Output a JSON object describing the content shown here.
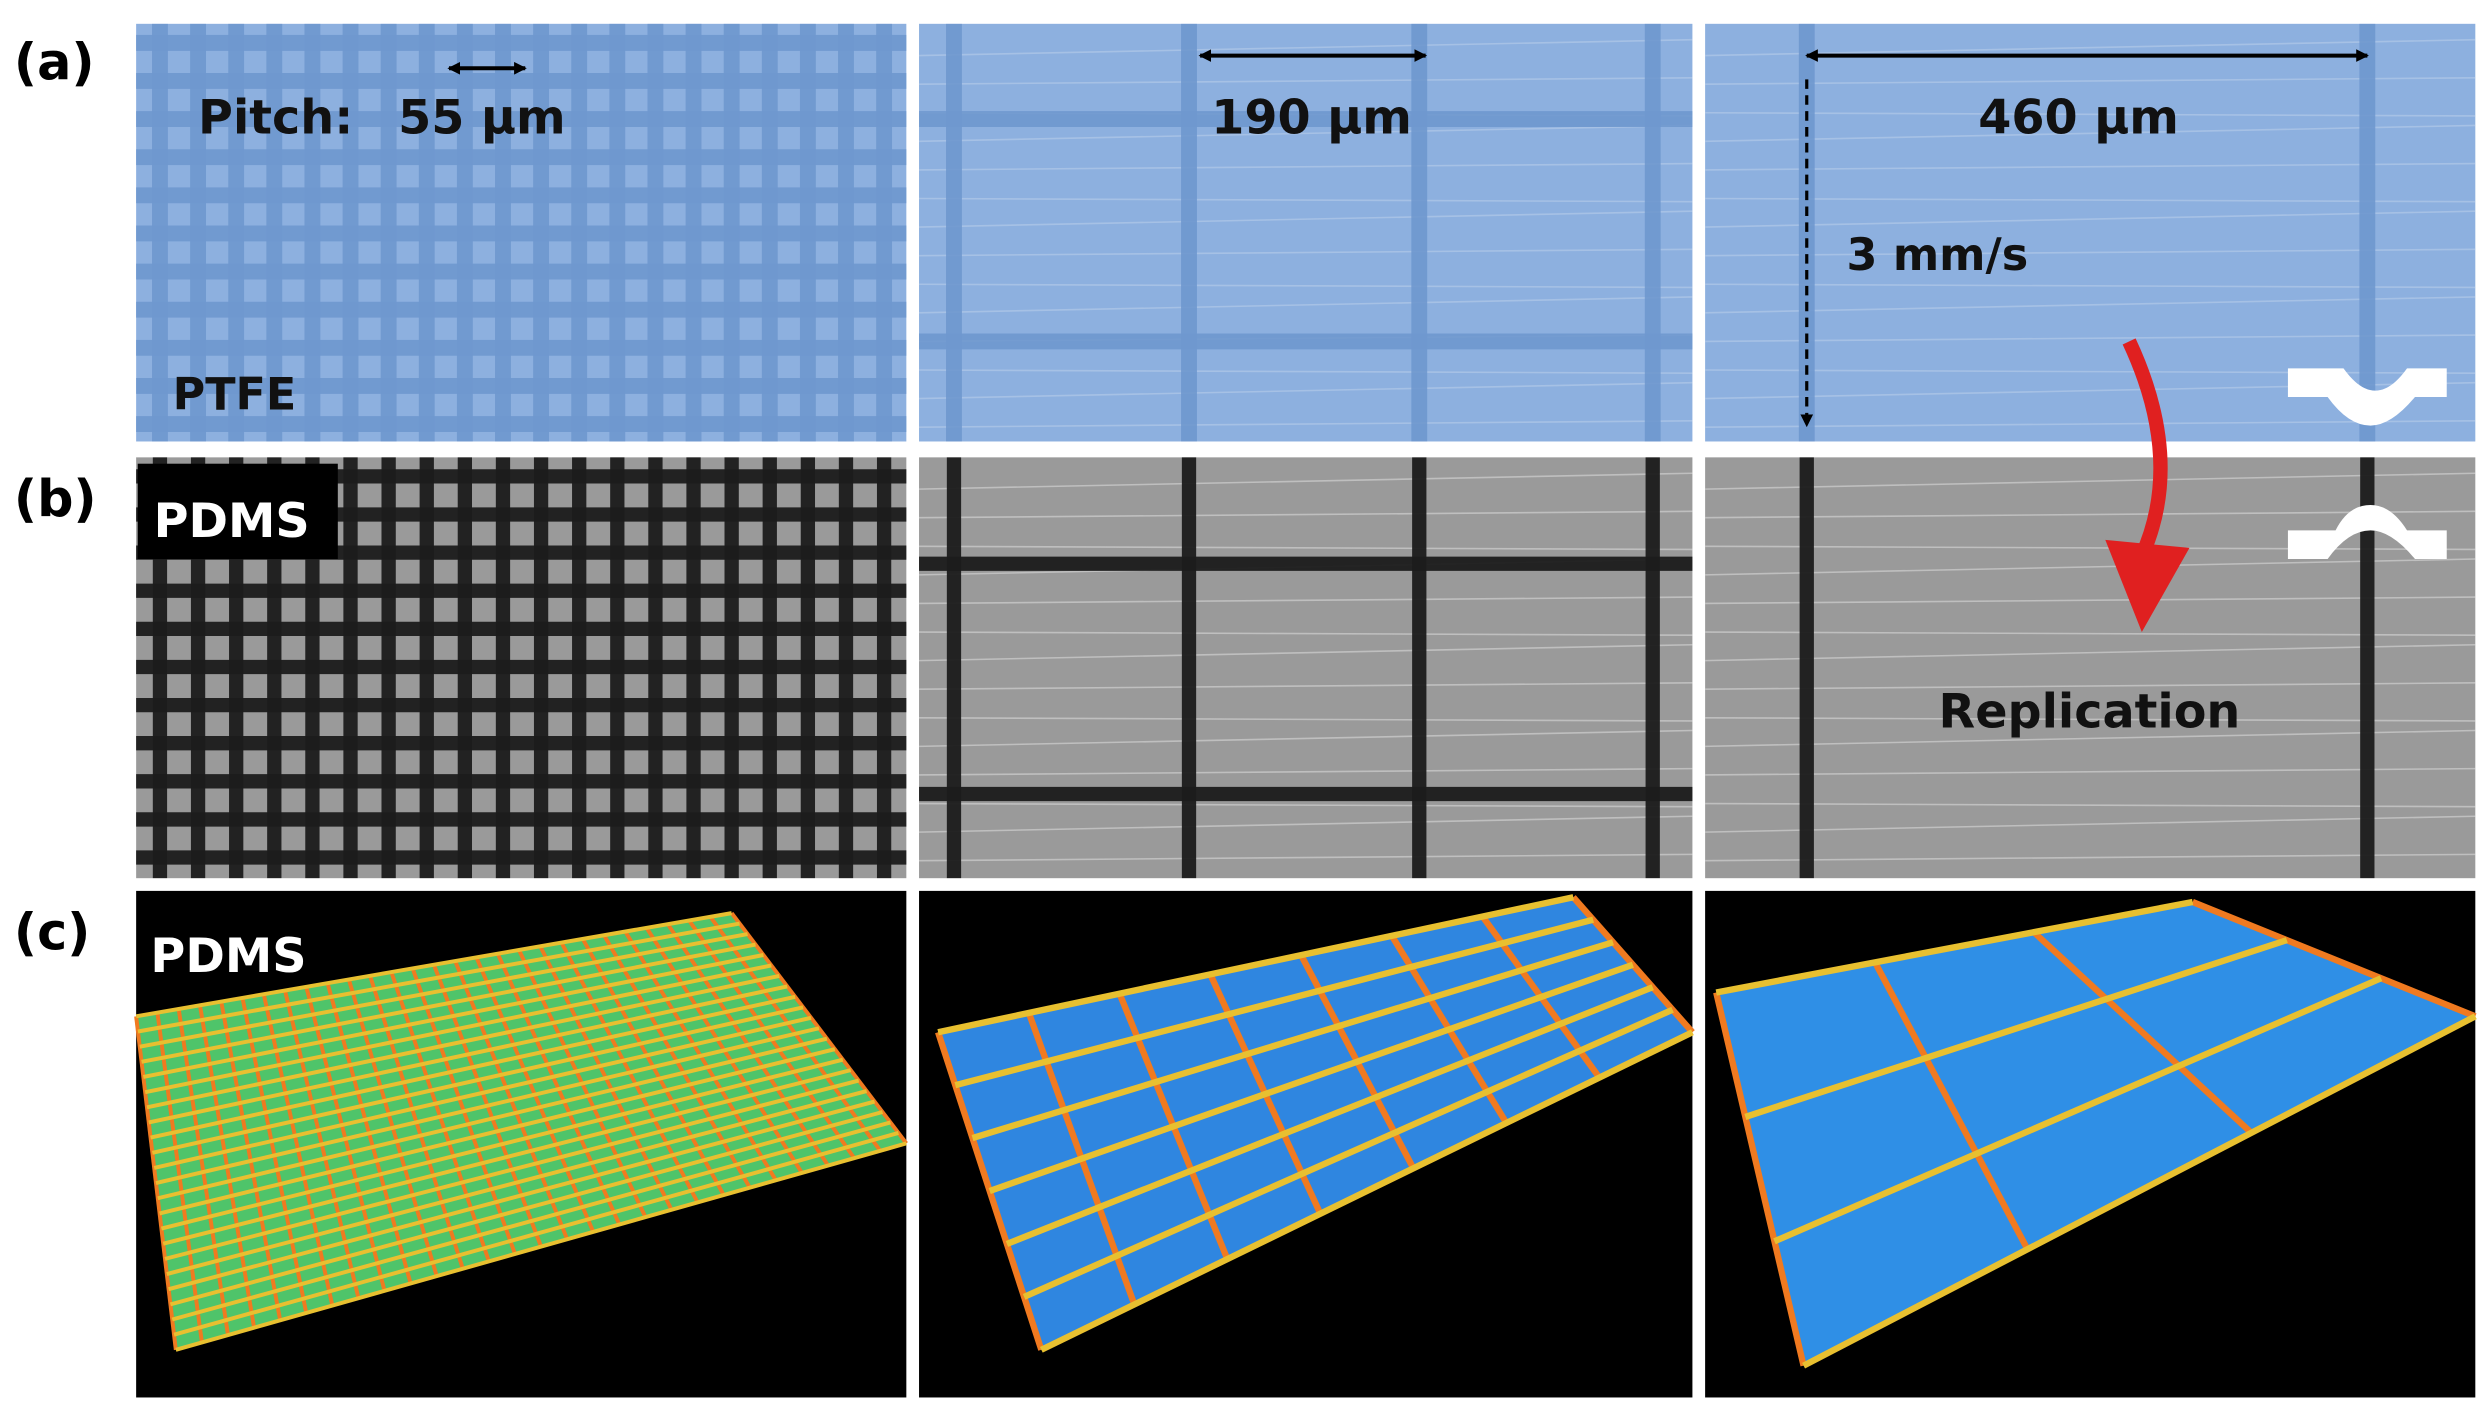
{
  "panels": {
    "a": {
      "label": "(a)",
      "pitch_label": "Pitch:",
      "pitch_values": [
        "55 μm",
        "190 μm",
        "460 μm"
      ],
      "speed": "3 mm/s",
      "material": "PTFE"
    },
    "b": {
      "label": "(b)",
      "material": "PDMS",
      "annotation": "Replication"
    },
    "c": {
      "label": "(c)",
      "material": "PDMS"
    }
  }
}
